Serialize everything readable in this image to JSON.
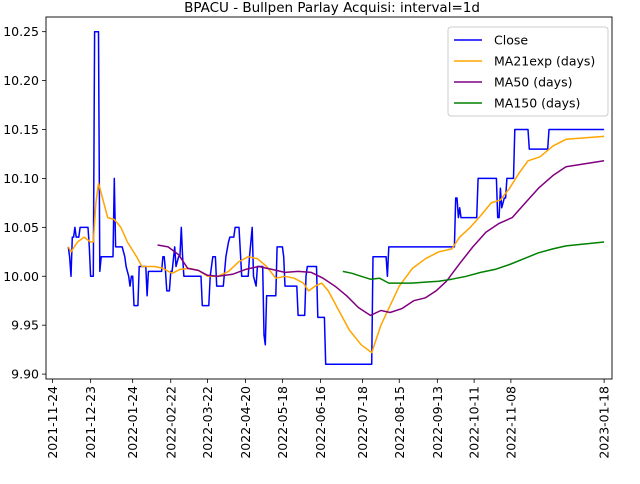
{
  "chart_data": {
    "type": "line",
    "title": "BPACU - Bullpen Parlay Acquisi: interval=1d",
    "xlabel": "",
    "ylabel": "",
    "x_range": [
      "2021-11-19",
      "2023-01-24"
    ],
    "ylim": [
      9.895,
      10.265
    ],
    "grid": false,
    "legend_position": "top-right",
    "x_ticks": [
      "2021-11-24",
      "2021-12-23",
      "2022-01-24",
      "2022-02-22",
      "2022-03-22",
      "2022-04-20",
      "2022-05-18",
      "2022-06-16",
      "2022-07-18",
      "2022-08-15",
      "2022-09-13",
      "2022-10-11",
      "2022-11-08",
      "2023-01-18"
    ],
    "x_tick_labels": [
      "2021-11-24",
      "2021-12-23",
      "2022-01-24",
      "2022-02-22",
      "2022-03-22",
      "2022-04-20",
      "2022-05-18",
      "2022-06-16",
      "2022-07-18",
      "2022-08-15",
      "2022-09-13",
      "2022-10-11",
      "2022-11-08",
      "2023-01-18"
    ],
    "y_ticks": [
      9.9,
      9.95,
      10.0,
      10.05,
      10.1,
      10.15,
      10.2,
      10.25
    ],
    "y_tick_labels": [
      "9.90",
      "9.95",
      "10.00",
      "10.05",
      "10.10",
      "10.15",
      "10.20",
      "10.25"
    ],
    "series": [
      {
        "name": "Close",
        "color": "#0000ff",
        "points": [
          [
            "2021-12-06",
            10.03
          ],
          [
            "2021-12-07",
            10.02
          ],
          [
            "2021-12-08",
            10.0
          ],
          [
            "2021-12-09",
            10.04
          ],
          [
            "2021-12-10",
            10.04
          ],
          [
            "2021-12-11",
            10.05
          ],
          [
            "2021-12-12",
            10.04
          ],
          [
            "2021-12-14",
            10.04
          ],
          [
            "2021-12-15",
            10.05
          ],
          [
            "2021-12-21",
            10.05
          ],
          [
            "2021-12-22",
            10.03
          ],
          [
            "2021-12-23",
            10.0
          ],
          [
            "2021-12-25",
            10.0
          ],
          [
            "2021-12-26",
            10.25
          ],
          [
            "2021-12-29",
            10.25
          ],
          [
            "2021-12-30",
            10.005
          ],
          [
            "2021-12-31",
            10.02
          ],
          [
            "2022-01-09",
            10.02
          ],
          [
            "2022-01-10",
            10.1
          ],
          [
            "2022-01-11",
            10.03
          ],
          [
            "2022-01-16",
            10.03
          ],
          [
            "2022-01-18",
            10.02
          ],
          [
            "2022-01-19",
            10.01
          ],
          [
            "2022-01-21",
            10.0
          ],
          [
            "2022-01-22",
            9.99
          ],
          [
            "2022-01-23",
            10.0
          ],
          [
            "2022-01-24",
            10.0
          ],
          [
            "2022-01-25",
            9.97
          ],
          [
            "2022-01-28",
            9.97
          ],
          [
            "2022-01-29",
            10.01
          ],
          [
            "2022-02-03",
            10.01
          ],
          [
            "2022-02-04",
            9.98
          ],
          [
            "2022-02-05",
            10.005
          ],
          [
            "2022-02-15",
            10.005
          ],
          [
            "2022-02-16",
            10.02
          ],
          [
            "2022-02-17",
            10.02
          ],
          [
            "2022-02-18",
            10.005
          ],
          [
            "2022-02-19",
            9.985
          ],
          [
            "2022-02-21",
            9.985
          ],
          [
            "2022-02-22",
            10.005
          ],
          [
            "2022-02-23",
            10.005
          ],
          [
            "2022-02-25",
            10.03
          ],
          [
            "2022-02-26",
            10.01
          ],
          [
            "2022-02-28",
            10.02
          ],
          [
            "2022-03-01",
            10.02
          ],
          [
            "2022-03-02",
            10.05
          ],
          [
            "2022-03-03",
            10.02
          ],
          [
            "2022-03-04",
            10.0
          ],
          [
            "2022-03-17",
            10.0
          ],
          [
            "2022-03-18",
            9.97
          ],
          [
            "2022-03-23",
            9.97
          ],
          [
            "2022-03-24",
            10.0
          ],
          [
            "2022-03-26",
            10.02
          ],
          [
            "2022-03-28",
            10.02
          ],
          [
            "2022-03-29",
            9.99
          ],
          [
            "2022-04-03",
            9.99
          ],
          [
            "2022-04-05",
            10.02
          ],
          [
            "2022-04-07",
            10.035
          ],
          [
            "2022-04-08",
            10.04
          ],
          [
            "2022-04-11",
            10.04
          ],
          [
            "2022-04-12",
            10.05
          ],
          [
            "2022-04-15",
            10.05
          ],
          [
            "2022-04-17",
            10.0
          ],
          [
            "2022-04-22",
            10.0
          ],
          [
            "2022-04-23",
            10.02
          ],
          [
            "2022-04-25",
            10.05
          ],
          [
            "2022-04-26",
            10.0
          ],
          [
            "2022-04-28",
            9.99
          ],
          [
            "2022-04-29",
            10.01
          ],
          [
            "2022-05-03",
            10.01
          ],
          [
            "2022-05-04",
            9.94
          ],
          [
            "2022-05-05",
            9.93
          ],
          [
            "2022-05-06",
            9.98
          ],
          [
            "2022-05-13",
            9.98
          ],
          [
            "2022-05-14",
            10.03
          ],
          [
            "2022-05-18",
            10.03
          ],
          [
            "2022-05-19",
            10.02
          ],
          [
            "2022-05-20",
            9.99
          ],
          [
            "2022-05-29",
            9.99
          ],
          [
            "2022-05-30",
            9.96
          ],
          [
            "2022-06-04",
            9.96
          ],
          [
            "2022-06-05",
            10.0
          ],
          [
            "2022-06-06",
            10.01
          ],
          [
            "2022-06-13",
            10.01
          ],
          [
            "2022-06-14",
            9.958
          ],
          [
            "2022-06-19",
            9.958
          ],
          [
            "2022-06-20",
            9.91
          ],
          [
            "2022-07-25",
            9.91
          ],
          [
            "2022-07-26",
            10.02
          ],
          [
            "2022-08-05",
            10.02
          ],
          [
            "2022-08-06",
            10.0
          ],
          [
            "2022-08-07",
            10.03
          ],
          [
            "2022-09-26",
            10.03
          ],
          [
            "2022-09-27",
            10.08
          ],
          [
            "2022-09-28",
            10.08
          ],
          [
            "2022-09-29",
            10.06
          ],
          [
            "2022-09-30",
            10.07
          ],
          [
            "2022-10-01",
            10.06
          ],
          [
            "2022-10-13",
            10.06
          ],
          [
            "2022-10-14",
            10.1
          ],
          [
            "2022-10-28",
            10.1
          ],
          [
            "2022-10-29",
            10.06
          ],
          [
            "2022-10-30",
            10.06
          ],
          [
            "2022-10-31",
            10.09
          ],
          [
            "2022-11-01",
            10.07
          ],
          [
            "2022-11-03",
            10.08
          ],
          [
            "2022-11-04",
            10.08
          ],
          [
            "2022-11-05",
            10.1
          ],
          [
            "2022-11-10",
            10.1
          ],
          [
            "2022-11-11",
            10.15
          ],
          [
            "2022-11-21",
            10.15
          ],
          [
            "2022-11-22",
            10.13
          ],
          [
            "2022-12-06",
            10.13
          ],
          [
            "2022-12-07",
            10.15
          ],
          [
            "2023-01-18",
            10.15
          ]
        ]
      },
      {
        "name": "MA21exp (days)",
        "color": "#ffa500",
        "points": [
          [
            "2021-12-06",
            10.03
          ],
          [
            "2021-12-08",
            10.025
          ],
          [
            "2021-12-13",
            10.035
          ],
          [
            "2021-12-18",
            10.04
          ],
          [
            "2021-12-23",
            10.035
          ],
          [
            "2021-12-25",
            10.035
          ],
          [
            "2021-12-27",
            10.075
          ],
          [
            "2021-12-29",
            10.095
          ],
          [
            "2022-01-01",
            10.08
          ],
          [
            "2022-01-05",
            10.06
          ],
          [
            "2022-01-10",
            10.058
          ],
          [
            "2022-01-15",
            10.05
          ],
          [
            "2022-01-20",
            10.035
          ],
          [
            "2022-01-27",
            10.02
          ],
          [
            "2022-01-31",
            10.01
          ],
          [
            "2022-02-10",
            10.01
          ],
          [
            "2022-02-16",
            10.008
          ],
          [
            "2022-02-23",
            10.003
          ],
          [
            "2022-03-01",
            10.007
          ],
          [
            "2022-03-08",
            10.008
          ],
          [
            "2022-03-15",
            10.006
          ],
          [
            "2022-03-22",
            10.0
          ],
          [
            "2022-03-30",
            10.0
          ],
          [
            "2022-04-07",
            10.005
          ],
          [
            "2022-04-15",
            10.015
          ],
          [
            "2022-04-22",
            10.02
          ],
          [
            "2022-04-29",
            10.018
          ],
          [
            "2022-05-06",
            10.01
          ],
          [
            "2022-05-13",
            9.998
          ],
          [
            "2022-05-20",
            10.0
          ],
          [
            "2022-05-27",
            9.998
          ],
          [
            "2022-06-03",
            9.993
          ],
          [
            "2022-06-07",
            9.985
          ],
          [
            "2022-06-12",
            9.99
          ],
          [
            "2022-06-17",
            9.993
          ],
          [
            "2022-06-22",
            9.985
          ],
          [
            "2022-06-30",
            9.965
          ],
          [
            "2022-07-08",
            9.945
          ],
          [
            "2022-07-17",
            9.93
          ],
          [
            "2022-07-25",
            9.922
          ],
          [
            "2022-08-01",
            9.95
          ],
          [
            "2022-08-08",
            9.97
          ],
          [
            "2022-08-15",
            9.99
          ],
          [
            "2022-08-25",
            10.008
          ],
          [
            "2022-09-04",
            10.018
          ],
          [
            "2022-09-14",
            10.025
          ],
          [
            "2022-09-24",
            10.028
          ],
          [
            "2022-09-30",
            10.04
          ],
          [
            "2022-10-08",
            10.05
          ],
          [
            "2022-10-16",
            10.062
          ],
          [
            "2022-10-24",
            10.075
          ],
          [
            "2022-10-31",
            10.078
          ],
          [
            "2022-11-07",
            10.09
          ],
          [
            "2022-11-14",
            10.105
          ],
          [
            "2022-11-21",
            10.118
          ],
          [
            "2022-11-30",
            10.122
          ],
          [
            "2022-12-10",
            10.133
          ],
          [
            "2022-12-20",
            10.14
          ],
          [
            "2023-01-18",
            10.143
          ]
        ]
      },
      {
        "name": "MA50 (days)",
        "color": "#800080",
        "points": [
          [
            "2022-02-12",
            10.032
          ],
          [
            "2022-02-20",
            10.03
          ],
          [
            "2022-02-28",
            10.022
          ],
          [
            "2022-03-07",
            10.008
          ],
          [
            "2022-03-15",
            10.006
          ],
          [
            "2022-03-22",
            10.001
          ],
          [
            "2022-03-30",
            10.0
          ],
          [
            "2022-04-10",
            10.002
          ],
          [
            "2022-04-20",
            10.007
          ],
          [
            "2022-04-30",
            10.01
          ],
          [
            "2022-05-10",
            10.007
          ],
          [
            "2022-05-20",
            10.004
          ],
          [
            "2022-05-30",
            10.005
          ],
          [
            "2022-06-09",
            10.004
          ],
          [
            "2022-06-18",
            9.998
          ],
          [
            "2022-06-27",
            9.99
          ],
          [
            "2022-07-06",
            9.98
          ],
          [
            "2022-07-15",
            9.968
          ],
          [
            "2022-07-24",
            9.96
          ],
          [
            "2022-08-01",
            9.965
          ],
          [
            "2022-08-08",
            9.963
          ],
          [
            "2022-08-17",
            9.967
          ],
          [
            "2022-08-26",
            9.975
          ],
          [
            "2022-09-04",
            9.978
          ],
          [
            "2022-09-12",
            9.985
          ],
          [
            "2022-09-20",
            9.995
          ],
          [
            "2022-09-30",
            10.013
          ],
          [
            "2022-10-10",
            10.03
          ],
          [
            "2022-10-20",
            10.045
          ],
          [
            "2022-10-30",
            10.054
          ],
          [
            "2022-11-09",
            10.06
          ],
          [
            "2022-11-19",
            10.075
          ],
          [
            "2022-11-29",
            10.09
          ],
          [
            "2022-12-10",
            10.103
          ],
          [
            "2022-12-20",
            10.112
          ],
          [
            "2023-01-18",
            10.118
          ]
        ]
      },
      {
        "name": "MA150 (days)",
        "color": "#008000",
        "points": [
          [
            "2022-07-03",
            10.005
          ],
          [
            "2022-07-10",
            10.003
          ],
          [
            "2022-07-17",
            10.0
          ],
          [
            "2022-07-24",
            9.997
          ],
          [
            "2022-07-31",
            9.998
          ],
          [
            "2022-08-07",
            9.993
          ],
          [
            "2022-08-14",
            9.993
          ],
          [
            "2022-08-24",
            9.993
          ],
          [
            "2022-09-04",
            9.994
          ],
          [
            "2022-09-14",
            9.995
          ],
          [
            "2022-09-24",
            9.997
          ],
          [
            "2022-10-05",
            10.0
          ],
          [
            "2022-10-16",
            10.004
          ],
          [
            "2022-10-27",
            10.007
          ],
          [
            "2022-11-07",
            10.012
          ],
          [
            "2022-11-18",
            10.018
          ],
          [
            "2022-11-29",
            10.024
          ],
          [
            "2022-12-10",
            10.028
          ],
          [
            "2022-12-20",
            10.031
          ],
          [
            "2023-01-18",
            10.035
          ]
        ]
      }
    ]
  }
}
